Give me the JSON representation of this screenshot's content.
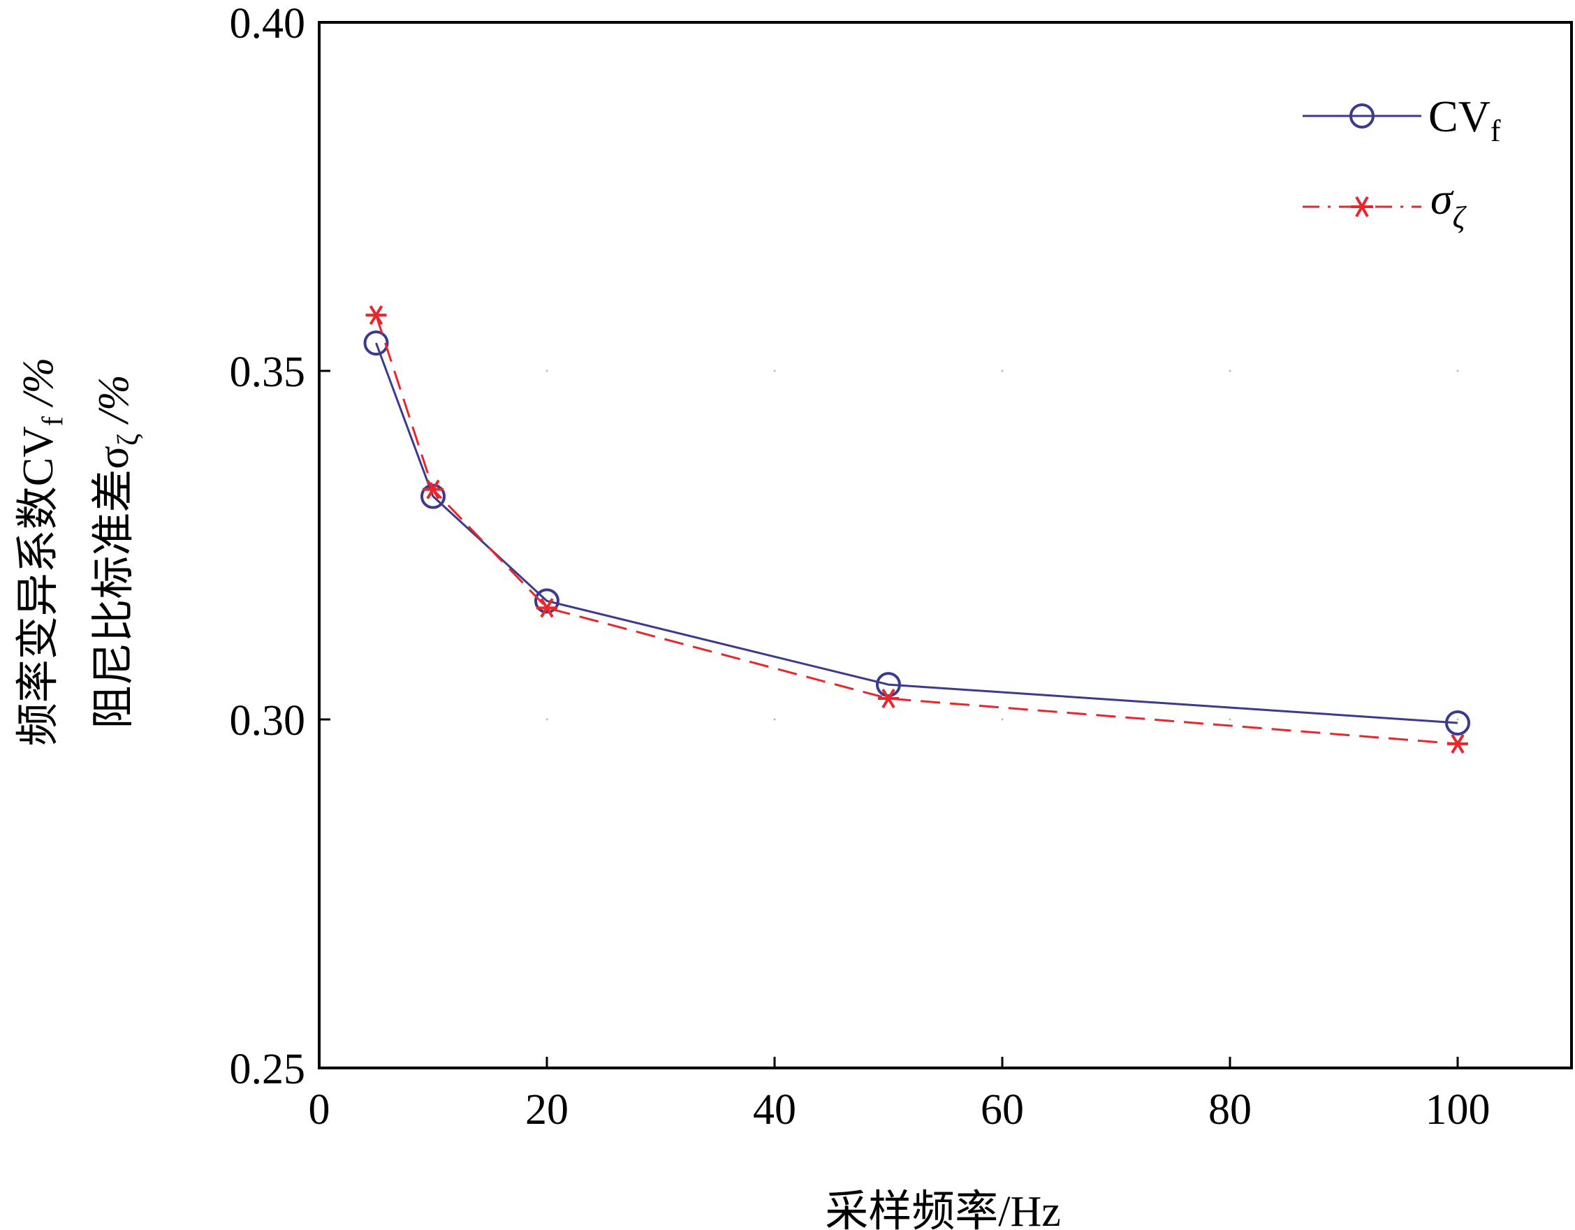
{
  "chart_data": {
    "type": "line",
    "x": [
      5,
      10,
      20,
      50,
      100
    ],
    "series": [
      {
        "name": "CV",
        "name_sub": "f",
        "values": [
          0.354,
          0.332,
          0.317,
          0.305,
          0.2995
        ],
        "color": "#3b3a8c",
        "style": "solid",
        "marker": "circle"
      },
      {
        "name": "σ",
        "name_sub": "ζ",
        "values": [
          0.358,
          0.333,
          0.316,
          0.303,
          0.2965
        ],
        "color": "#e8262b",
        "style": "dashed",
        "marker": "asterisk"
      }
    ],
    "xlabel": "采样频率/Hz",
    "ylabel_line1": "频率变异系数CV",
    "ylabel_line1_sub": "f",
    "ylabel_line1_tail": " /%",
    "ylabel_line2": "阻尼比标准差σ",
    "ylabel_line2_sub": "ζ",
    "ylabel_line2_tail": " /%",
    "xlim": [
      0,
      110
    ],
    "ylim": [
      0.25,
      0.4
    ],
    "xticks": [
      0,
      20,
      40,
      60,
      80,
      100
    ],
    "xtick_labels": [
      "0",
      "20",
      "40",
      "60",
      "80",
      "100"
    ],
    "yticks": [
      0.25,
      0.3,
      0.35,
      0.4
    ],
    "ytick_labels": [
      "0.25",
      "0.30",
      "0.35",
      "0.40"
    ],
    "grid": "dotted",
    "legend_position": "top-right"
  }
}
